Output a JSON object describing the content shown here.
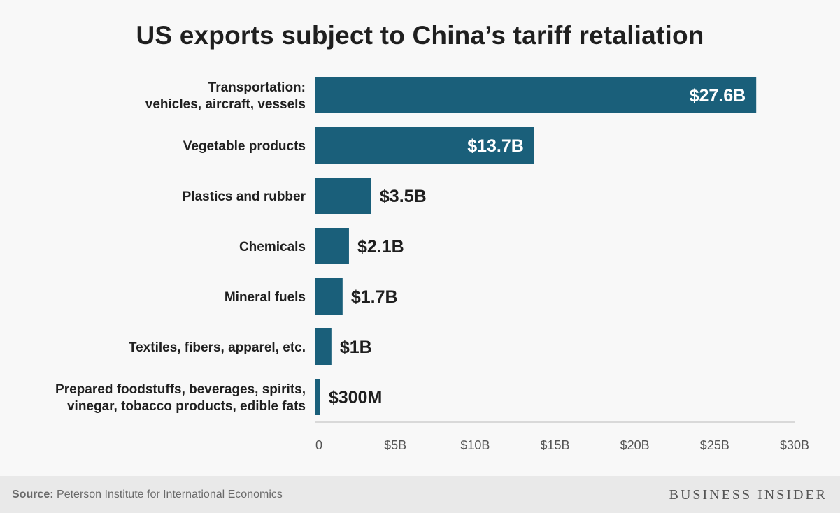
{
  "title": "US exports subject to China’s tariff retaliation",
  "source_label": "Source:",
  "source_text": "Peterson Institute for International Economics",
  "brand": "BUSINESS INSIDER",
  "colors": {
    "bar": "#1a5f7a",
    "axis": "#d9d9d9",
    "label": "#1f1f1f",
    "tick": "#555555",
    "inner_label": "#ffffff"
  },
  "chart_data": {
    "type": "bar",
    "orientation": "horizontal",
    "categories": [
      [
        "Transportation:",
        "vehicles, aircraft, vessels"
      ],
      [
        "Vegetable products"
      ],
      [
        "Plastics and rubber"
      ],
      [
        "Chemicals"
      ],
      [
        "Mineral fuels"
      ],
      [
        "Textiles, fibers, apparel, etc."
      ],
      [
        "Prepared foodstuffs, beverages, spirits,",
        "vinegar, tobacco products, edible fats"
      ]
    ],
    "values": [
      27.6,
      13.7,
      3.5,
      2.1,
      1.7,
      1.0,
      0.3
    ],
    "value_labels": [
      "$27.6B",
      "$13.7B",
      "$3.5B",
      "$2.1B",
      "$1.7B",
      "$1B",
      "$300M"
    ],
    "xlim": [
      0,
      30
    ],
    "xticks": [
      0,
      5,
      10,
      15,
      20,
      25,
      30
    ],
    "xtick_labels": [
      "0",
      "$5B",
      "$10B",
      "$15B",
      "$20B",
      "$25B",
      "$30B"
    ],
    "grid": false,
    "legend": "none"
  }
}
